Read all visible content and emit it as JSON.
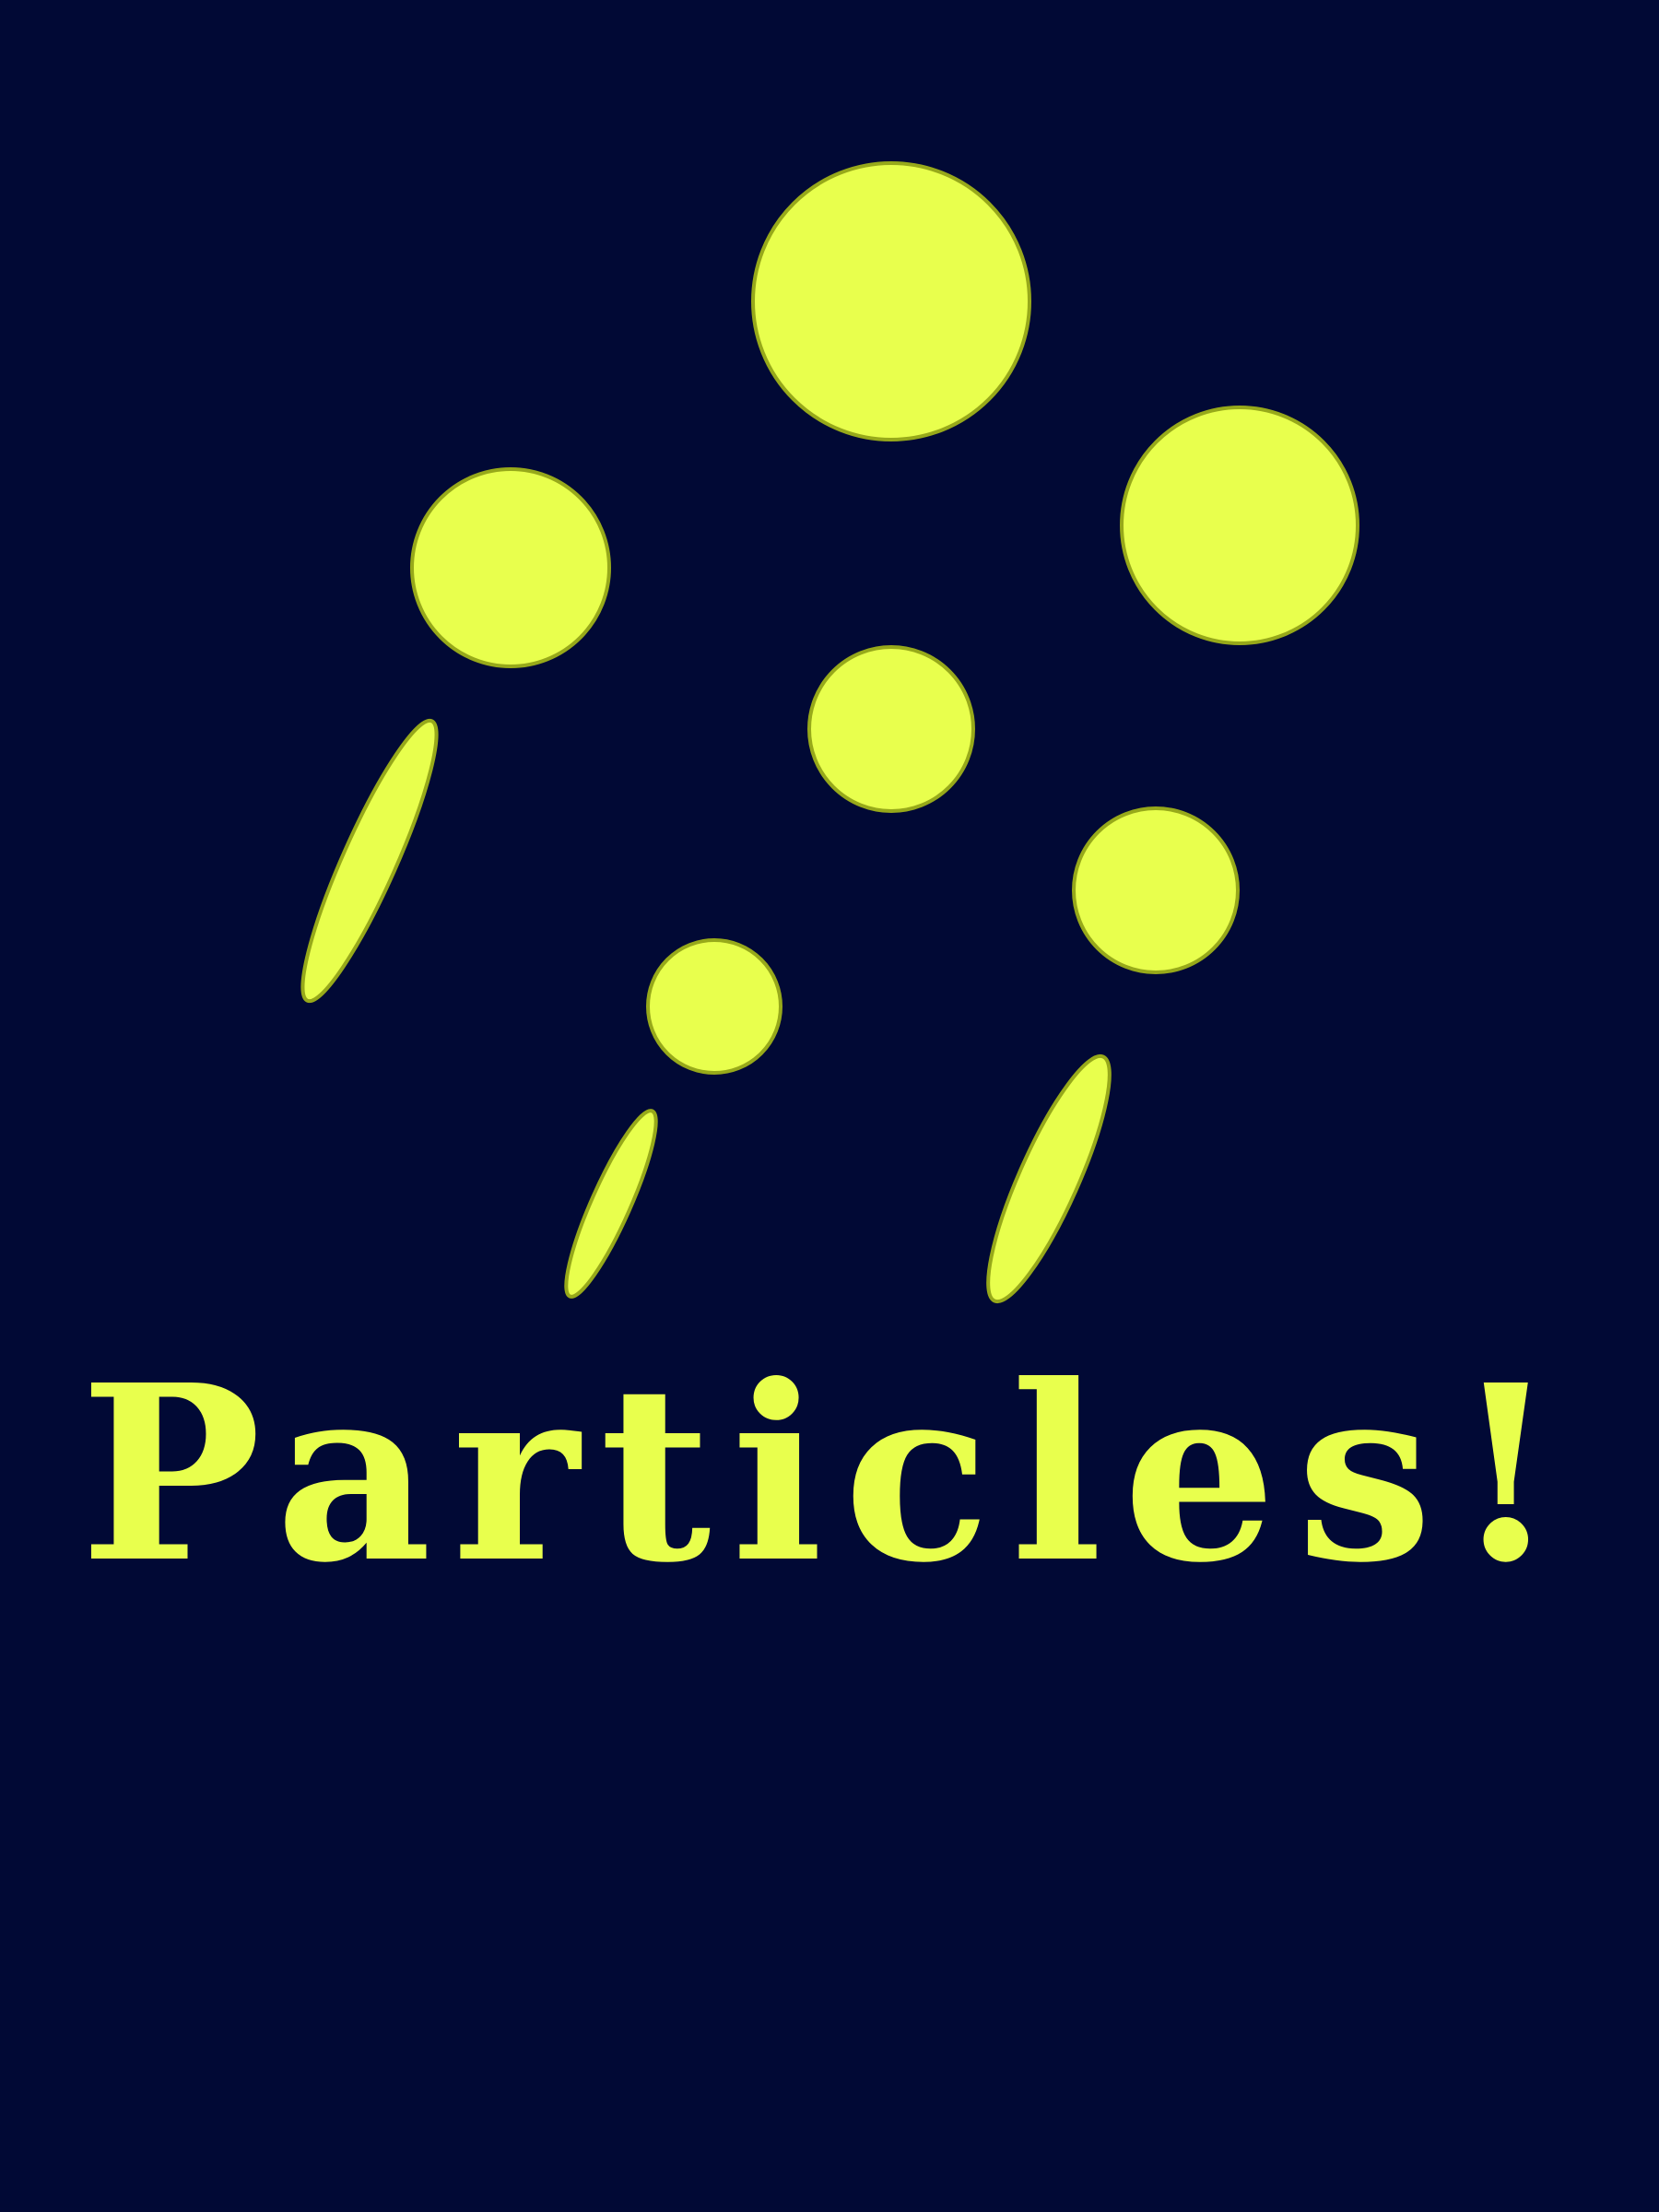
{
  "colors": {
    "background": "#010935",
    "particle_fill": "#e8ff4d",
    "particle_stroke": "#97a91a",
    "text": "#e8ff4d"
  },
  "headline": "Particles!"
}
